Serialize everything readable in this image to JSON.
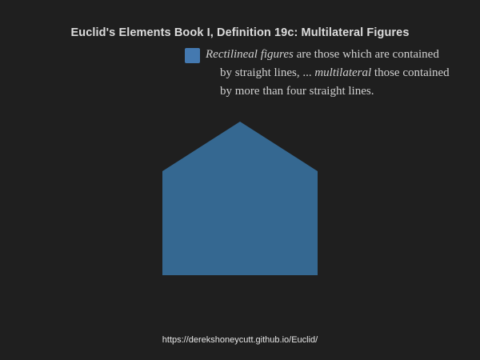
{
  "title": "Euclid's Elements Book I, Definition 19c: Multilateral Figures",
  "colors": {
    "background": "#1f1f1f",
    "shape_fill": "#356891",
    "swatch_fill": "#4479b0"
  },
  "definition": {
    "line1_italic_a": "Rectilineal figures",
    "line1_plain": " are those which are contained",
    "line2_plain_a": "by straight lines, ... ",
    "line2_italic": "multilateral",
    "line2_plain_b": " those contained",
    "line3": "by more than four straight lines."
  },
  "footer_url": "https://derekshoneycutt.github.io/Euclid/"
}
